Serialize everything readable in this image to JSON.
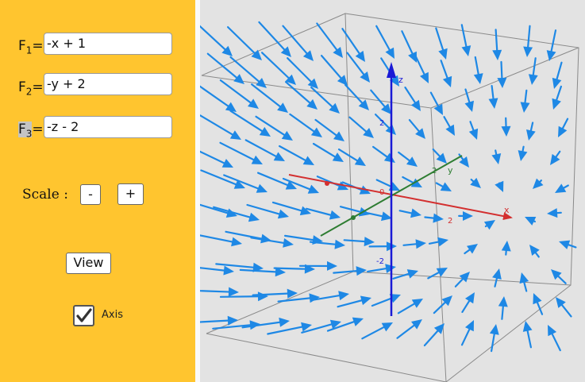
{
  "controls": {
    "f1": {
      "label": "F",
      "sub": "1",
      "eq": "=",
      "value": "-x + 1"
    },
    "f2": {
      "label": "F",
      "sub": "2",
      "eq": "=",
      "value": "-y + 2"
    },
    "f3": {
      "label": "F",
      "sub": "3",
      "eq": "=",
      "value": "-z - 2"
    },
    "scale_label": "Scale :",
    "scale_minus": "-",
    "scale_plus": "+",
    "view_button": "View",
    "axis_label": "Axis",
    "axis_checked": true
  },
  "graph": {
    "axis_x_label": "x",
    "axis_y_label": "y",
    "axis_z_label": "z",
    "origin_label": "0",
    "tick_x": "2",
    "tick_y": "2",
    "tick_z_pos": "2",
    "tick_z_neg": "-2",
    "arrow_color": "#1e88e5",
    "x_axis_color": "#d32f2f",
    "y_axis_color": "#2e7d32",
    "z_axis_color": "#1a1ad6"
  },
  "icons": {
    "fullscreen": "fullscreen-icon",
    "check": "check-icon"
  }
}
